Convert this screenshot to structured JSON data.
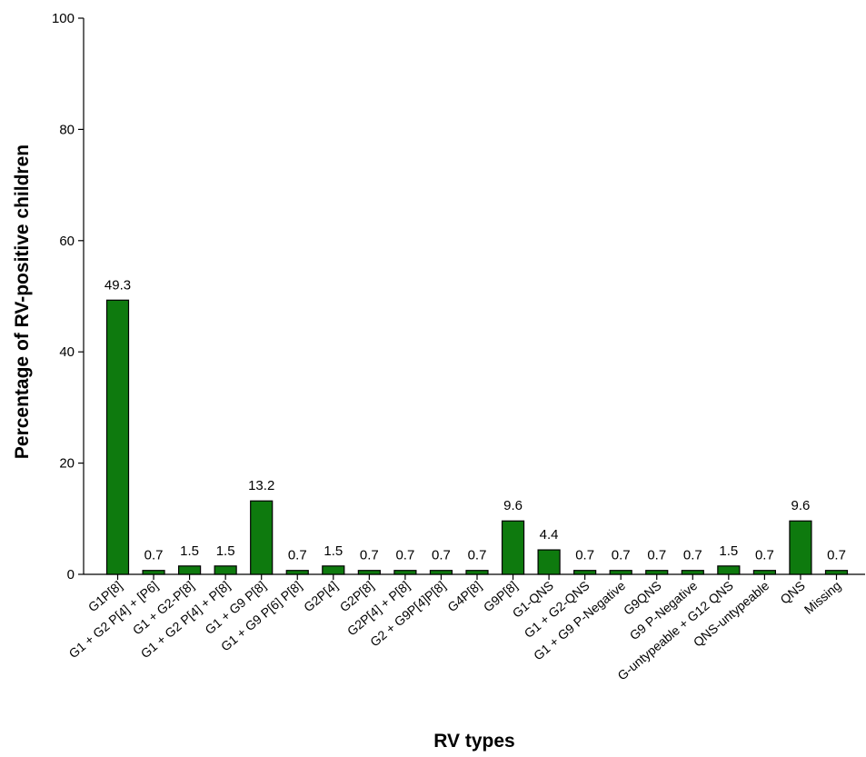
{
  "chart_data": {
    "type": "bar",
    "xlabel": "RV types",
    "ylabel": "Percentage of RV-positive children",
    "ylim": [
      0,
      100
    ],
    "yticks": [
      "0",
      "20",
      "40",
      "60",
      "80",
      "100"
    ],
    "grid": false,
    "bar_color": "#0e7a0e",
    "categories": [
      "G1P[8]",
      "G1 + G2 P[4] + [P6]",
      "G1 + G2-P[8]",
      "G1 + G2 P[4] + P[8]",
      "G1 + G9 P[8]",
      "G1 + G9 P[6] P[8]",
      "G2P[4]",
      "G2P[8]",
      "G2P[4] + P[8]",
      "G2 + G9P[4]P[8]",
      "G4P[8]",
      "G9P[8]",
      "G1-QNS",
      "G1 + G2-QNS",
      "G1 + G9 P-Negative",
      "G9QNS",
      "G9 P-Negative",
      "G-untypeable + G12 QNS",
      "QNS-untypeable",
      "QNS",
      "Missing"
    ],
    "values": [
      49.3,
      0.7,
      1.5,
      1.5,
      13.2,
      0.7,
      1.5,
      0.7,
      0.7,
      0.7,
      0.7,
      9.6,
      4.4,
      0.7,
      0.7,
      0.7,
      0.7,
      1.5,
      0.7,
      9.6,
      0.7
    ],
    "value_labels": [
      "49.3",
      "0.7",
      "1.5",
      "1.5",
      "13.2",
      "0.7",
      "1.5",
      "0.7",
      "0.7",
      "0.7",
      "0.7",
      "9.6",
      "4.4",
      "0.7",
      "0.7",
      "0.7",
      "0.7",
      "1.5",
      "0.7",
      "9.6",
      "0.7"
    ]
  }
}
